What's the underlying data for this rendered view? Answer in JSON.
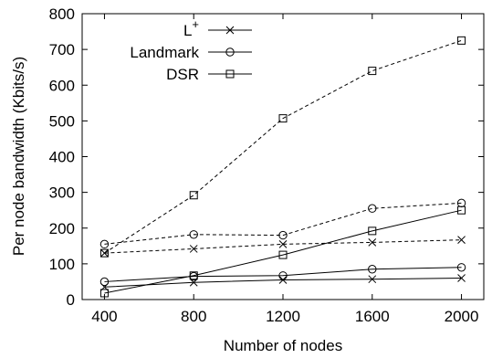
{
  "chart_data": {
    "type": "line",
    "xlabel": "Number of nodes",
    "ylabel": "Per node bandwidth (Kbits/s)",
    "x": [
      400,
      800,
      1200,
      1600,
      2000
    ],
    "xlim": [
      300,
      2100
    ],
    "ylim": [
      0,
      800
    ],
    "xticks": [
      "400",
      "800",
      "1200",
      "1600",
      "2000"
    ],
    "yticks": [
      "0",
      "100",
      "200",
      "300",
      "400",
      "500",
      "600",
      "700",
      "800"
    ],
    "legend_position": "top-left",
    "grid": false,
    "line_color": "#000000",
    "legend": [
      {
        "base": "L",
        "sup": "+",
        "marker": "x"
      },
      {
        "base": "Landmark",
        "sup": "",
        "marker": "circle"
      },
      {
        "base": "DSR",
        "sup": "",
        "marker": "square"
      }
    ],
    "series": [
      {
        "name": "L+",
        "style": "solid",
        "marker": "x",
        "values": [
          35,
          48,
          55,
          57,
          60
        ]
      },
      {
        "name": "L+",
        "style": "dashed",
        "marker": "x",
        "values": [
          130,
          142,
          155,
          160,
          167
        ]
      },
      {
        "name": "Landmark",
        "style": "solid",
        "marker": "circle",
        "values": [
          50,
          65,
          67,
          85,
          90
        ]
      },
      {
        "name": "Landmark",
        "style": "dashed",
        "marker": "circle",
        "values": [
          155,
          182,
          180,
          255,
          270
        ]
      },
      {
        "name": "DSR",
        "style": "solid",
        "marker": "square",
        "values": [
          18,
          67,
          125,
          192,
          250
        ]
      },
      {
        "name": "DSR",
        "style": "dashed",
        "marker": "square",
        "values": [
          130,
          292,
          507,
          640,
          725
        ]
      }
    ]
  }
}
